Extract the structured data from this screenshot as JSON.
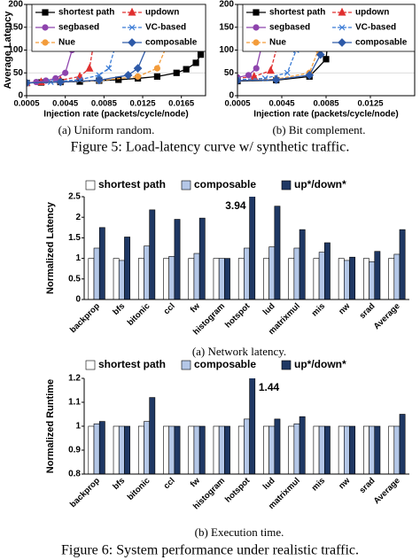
{
  "figure5_caption": "Figure 5: Load-latency curve w/ synthetic traffic.",
  "figure6_caption": "Figure 6: System performance under realistic traffic.",
  "chart_data": [
    {
      "type": "line",
      "caption": "(a) Uniform random.",
      "xlabel": "Injection rate (packets/cycle/node)",
      "ylabel": "Average Latency",
      "xlim": [
        0.0005,
        0.019
      ],
      "xticks": [
        0.0005,
        0.0045,
        0.0085,
        0.0125,
        0.0165
      ],
      "ylim": [
        0,
        200
      ],
      "yticks": [
        0,
        50,
        100,
        150,
        200
      ],
      "grid": true,
      "series": [
        {
          "name": "shortest path",
          "color": "#000000",
          "marker": "square",
          "dash": false,
          "x": [
            0.0005,
            0.002,
            0.004,
            0.006,
            0.008,
            0.01,
            0.012,
            0.014,
            0.016,
            0.017,
            0.018,
            0.0185,
            0.019
          ],
          "values": [
            28,
            29,
            30,
            31,
            33,
            35,
            38,
            42,
            50,
            58,
            72,
            90,
            200
          ]
        },
        {
          "name": "updown",
          "color": "#e03030",
          "marker": "triangle",
          "dash": true,
          "x": [
            0.0005,
            0.002,
            0.004,
            0.006,
            0.007,
            0.0074,
            0.0076
          ],
          "values": [
            28,
            30,
            34,
            42,
            60,
            110,
            200
          ]
        },
        {
          "name": "segbased",
          "color": "#8e44ad",
          "marker": "circle",
          "dash": false,
          "x": [
            0.0005,
            0.0015,
            0.0025,
            0.0035,
            0.0045,
            0.0052,
            0.0055
          ],
          "values": [
            28,
            30,
            33,
            38,
            50,
            100,
            200
          ]
        },
        {
          "name": "VC-based",
          "color": "#3a7bd5",
          "marker": "x",
          "dash": true,
          "x": [
            0.0005,
            0.003,
            0.006,
            0.008,
            0.009,
            0.0097,
            0.01
          ],
          "values": [
            28,
            30,
            35,
            45,
            60,
            110,
            200
          ]
        },
        {
          "name": "Nue",
          "color": "#f39c3b",
          "marker": "circle",
          "dash": true,
          "x": [
            0.0005,
            0.004,
            0.008,
            0.012,
            0.014,
            0.015,
            0.0155
          ],
          "values": [
            28,
            30,
            33,
            42,
            60,
            110,
            200
          ]
        },
        {
          "name": "composable",
          "color": "#2e5aa8",
          "marker": "diamond",
          "dash": false,
          "x": [
            0.0005,
            0.004,
            0.008,
            0.011,
            0.012,
            0.013,
            0.0134
          ],
          "values": [
            28,
            30,
            34,
            45,
            60,
            110,
            200
          ]
        }
      ]
    },
    {
      "type": "line",
      "caption": "(b) Bit complement.",
      "xlabel": "Injection rate (packets/cycle/node)",
      "xlim": [
        0.0005,
        0.0165
      ],
      "xticks": [
        0.0005,
        0.0045,
        0.0085,
        0.0125
      ],
      "ylim": [
        0,
        200
      ],
      "yticks": [
        0,
        50,
        100,
        150,
        200
      ],
      "grid": true,
      "series": [
        {
          "name": "shortest path",
          "color": "#000000",
          "marker": "square",
          "dash": false,
          "x": [
            0.0005,
            0.004,
            0.007,
            0.0085,
            0.009
          ],
          "values": [
            32,
            34,
            42,
            80,
            200
          ]
        },
        {
          "name": "updown",
          "color": "#e03030",
          "marker": "triangle",
          "dash": true,
          "x": [
            0.0005,
            0.002,
            0.0035,
            0.0041,
            0.0045
          ],
          "values": [
            38,
            42,
            55,
            110,
            200
          ]
        },
        {
          "name": "segbased",
          "color": "#8e44ad",
          "marker": "circle",
          "dash": false,
          "x": [
            0.0005,
            0.0015,
            0.0022,
            0.0027,
            0.003
          ],
          "values": [
            40,
            45,
            60,
            110,
            200
          ]
        },
        {
          "name": "VC-based",
          "color": "#3a7bd5",
          "marker": "x",
          "dash": true,
          "x": [
            0.0005,
            0.003,
            0.005,
            0.0058,
            0.0063
          ],
          "values": [
            35,
            38,
            50,
            100,
            200
          ]
        },
        {
          "name": "Nue",
          "color": "#f39c3b",
          "marker": "circle",
          "dash": true,
          "x": [
            0.0005,
            0.004,
            0.007,
            0.0078,
            0.0082
          ],
          "values": [
            33,
            36,
            50,
            100,
            200
          ]
        },
        {
          "name": "composable",
          "color": "#2e5aa8",
          "marker": "diamond",
          "dash": false,
          "x": [
            0.0005,
            0.004,
            0.007,
            0.008,
            0.0085
          ],
          "values": [
            33,
            35,
            45,
            90,
            200
          ]
        }
      ]
    },
    {
      "type": "bar",
      "caption": "(a) Network latency.",
      "ylabel": "Normalized Latency",
      "categories": [
        "backprop",
        "bfs",
        "bitonic",
        "ccl",
        "fw",
        "histogram",
        "hotspot",
        "lud",
        "matrixmul",
        "mis",
        "nw",
        "srad",
        "Average"
      ],
      "ylim": [
        0,
        2.5
      ],
      "yticks": [
        0,
        0.5,
        1,
        1.5,
        2,
        2.5
      ],
      "grid": false,
      "series": [
        {
          "name": "shortest path",
          "color": "#ffffff",
          "values": [
            1,
            1,
            1,
            1,
            1,
            1,
            1,
            1,
            1,
            1,
            1,
            1,
            1
          ]
        },
        {
          "name": "composable",
          "color": "#b4c7e7",
          "values": [
            1.25,
            0.95,
            1.3,
            1.05,
            1.12,
            1.0,
            1.25,
            1.28,
            1.25,
            1.15,
            0.95,
            0.92,
            1.1
          ]
        },
        {
          "name": "up*/down*",
          "color": "#1f3864",
          "values": [
            1.75,
            1.52,
            2.18,
            1.95,
            1.98,
            1.0,
            3.94,
            2.27,
            1.7,
            1.38,
            1.03,
            1.17,
            1.7
          ],
          "value_labels": [
            null,
            null,
            null,
            null,
            null,
            null,
            "3.94",
            null,
            null,
            null,
            null,
            null,
            null
          ]
        }
      ]
    },
    {
      "type": "bar",
      "caption": "(b) Execution time.",
      "ylabel": "Normalized Runtime",
      "categories": [
        "backprop",
        "bfs",
        "bitonic",
        "ccl",
        "fw",
        "histogram",
        "hotspot",
        "lud",
        "matrixmul",
        "mis",
        "nw",
        "srad",
        "Average"
      ],
      "ylim": [
        0.8,
        1.2
      ],
      "yticks": [
        0.8,
        0.9,
        1,
        1.1,
        1.2
      ],
      "grid": false,
      "series": [
        {
          "name": "shortest path",
          "color": "#ffffff",
          "values": [
            1,
            1,
            1,
            1,
            1,
            1,
            1,
            1,
            1,
            1,
            1,
            1,
            1
          ]
        },
        {
          "name": "composable",
          "color": "#b4c7e7",
          "values": [
            1.01,
            1.0,
            1.02,
            1.0,
            1.0,
            1.0,
            1.03,
            1.0,
            1.01,
            1.0,
            1.0,
            1.0,
            1.0
          ]
        },
        {
          "name": "up*/down*",
          "color": "#1f3864",
          "values": [
            1.02,
            1.0,
            1.12,
            1.0,
            1.0,
            1.0,
            1.44,
            1.03,
            1.04,
            1.0,
            1.0,
            1.0,
            1.05
          ],
          "value_labels": [
            null,
            null,
            null,
            null,
            null,
            null,
            "1.44",
            null,
            null,
            null,
            null,
            null,
            null
          ]
        }
      ]
    }
  ]
}
